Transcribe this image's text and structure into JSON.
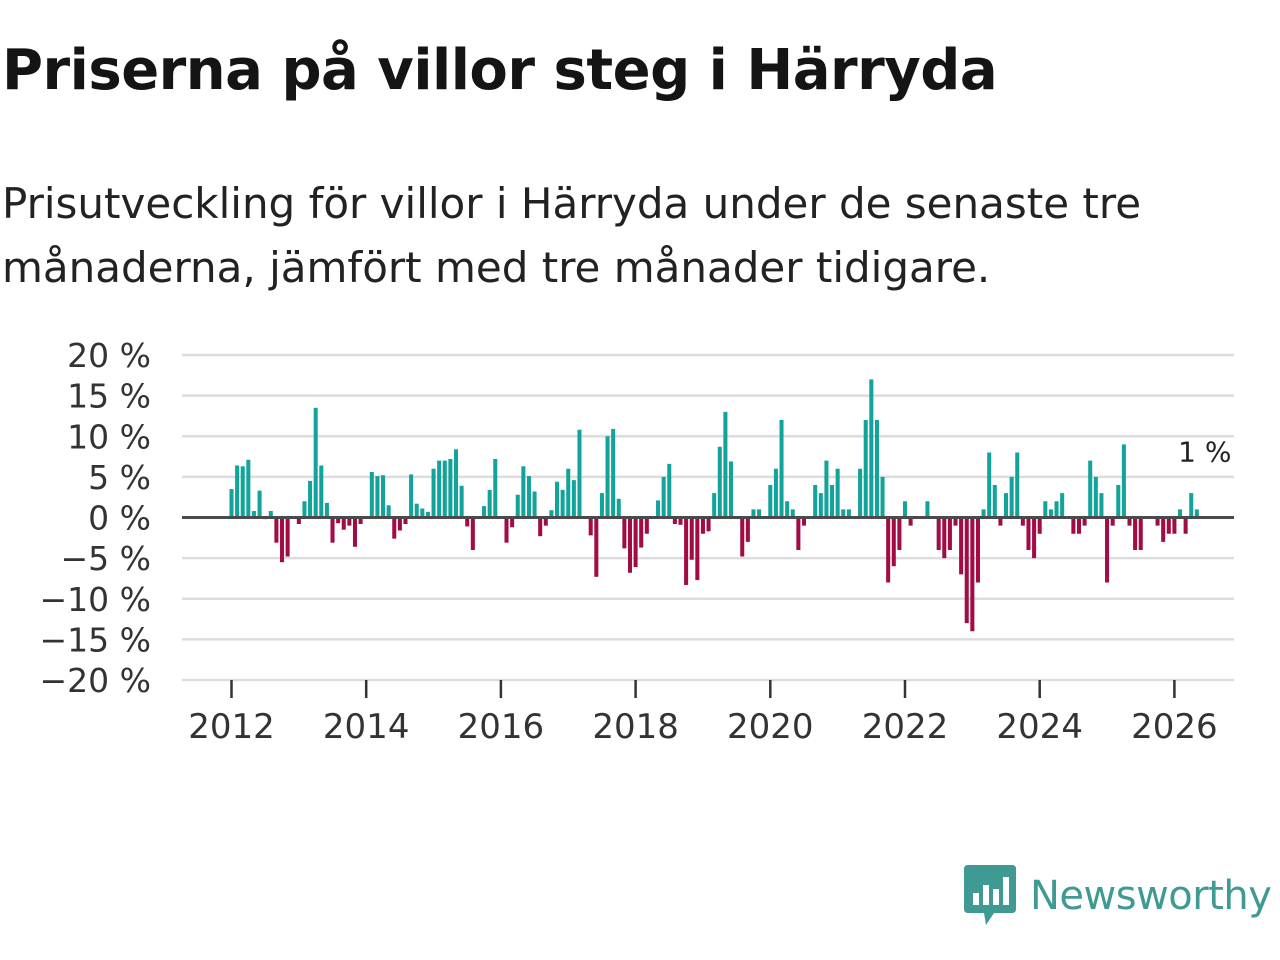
{
  "title": "Priserna på villor steg i Härryda",
  "subtitle": "Prisutveckling för villor i Härryda under de senaste tre månaderna, jämfört med tre månader tidigare.",
  "brand": {
    "name": "Newsworthy",
    "color": "#3e9a92"
  },
  "colors": {
    "positive": "#12a39a",
    "negative": "#a30b45",
    "grid": "#dddddd",
    "zero_line": "#4a4a4a"
  },
  "chart_data": {
    "type": "bar",
    "title": "Priserna på villor steg i Härryda",
    "xlabel": "",
    "ylabel": "",
    "ylim": [
      -20,
      20
    ],
    "y_ticks": [
      20,
      15,
      10,
      5,
      0,
      -5,
      -10,
      -15,
      -20
    ],
    "y_tick_labels": [
      "20 %",
      "15 %",
      "10 %",
      "5 %",
      "0 %",
      "−5 %",
      "−10 %",
      "−15 %",
      "−20 %"
    ],
    "x_ticks": [
      2012,
      2014,
      2016,
      2018,
      2020,
      2022,
      2024,
      2026
    ],
    "x_tick_labels": [
      "2012",
      "2014",
      "2016",
      "2018",
      "2020",
      "2022",
      "2024",
      "2026"
    ],
    "start_year": 2012,
    "start_month": 1,
    "last_value_label": "1 %",
    "series": [
      {
        "name": "Prisutveckling",
        "values": [
          3.5,
          6.4,
          6.3,
          7.1,
          0.8,
          3.3,
          -0.2,
          0.8,
          -3.1,
          -5.5,
          -4.8,
          -0.1,
          -0.8,
          2.0,
          4.5,
          13.5,
          6.4,
          1.8,
          -3.1,
          -0.7,
          -1.5,
          -1.0,
          -3.6,
          -0.8,
          -0.1,
          5.6,
          5.1,
          5.2,
          1.5,
          -2.6,
          -1.6,
          -0.8,
          5.3,
          1.7,
          1.1,
          0.7,
          6.0,
          7.0,
          7.0,
          7.2,
          8.4,
          3.9,
          -1.1,
          -4.0,
          -0.1,
          1.4,
          3.4,
          7.2,
          -0.1,
          -3.1,
          -1.2,
          2.8,
          6.3,
          5.1,
          3.2,
          -2.3,
          -1.0,
          0.9,
          4.4,
          3.4,
          6.0,
          4.6,
          10.8,
          -0.1,
          -2.2,
          -7.3,
          3.0,
          10.0,
          10.9,
          2.3,
          -3.8,
          -6.8,
          -6.1,
          -3.7,
          -2.0,
          -0.1,
          2.1,
          5.0,
          6.6,
          -0.8,
          -0.9,
          -8.3,
          -5.2,
          -7.7,
          -2.0,
          -1.7,
          3.0,
          8.7,
          13.0,
          6.9,
          -0.1,
          -4.8,
          -3.0,
          1.0,
          1.0,
          -0.1,
          4.0,
          6.0,
          12.0,
          2.0,
          1.0,
          -4.0,
          -1.0,
          -0.1,
          4.0,
          3.0,
          7.0,
          4.0,
          6.0,
          1.0,
          1.0,
          -0.1,
          6.0,
          12.0,
          17.0,
          12.0,
          5.0,
          -8.0,
          -6.0,
          -4.0,
          2.0,
          -1.0,
          -0.1,
          -0.1,
          2.0,
          -0.1,
          -4.0,
          -5.0,
          -4.0,
          -1.0,
          -7.0,
          -13.0,
          -14.0,
          -8.0,
          1.0,
          8.0,
          4.0,
          -1.0,
          3.0,
          5.0,
          8.0,
          -1.0,
          -4.0,
          -5.0,
          -2.0,
          2.0,
          1.0,
          2.0,
          3.0,
          -0.1,
          -2.0,
          -2.0,
          -1.0,
          7.0,
          5.0,
          3.0,
          -8.0,
          -1.0,
          4.0,
          9.0,
          -1.0,
          -4.0,
          -4.0,
          -0.1,
          -0.1,
          -1.0,
          -3.0,
          -2.0,
          -2.0,
          1.0,
          -2.0,
          3.0,
          1.0
        ]
      }
    ]
  }
}
